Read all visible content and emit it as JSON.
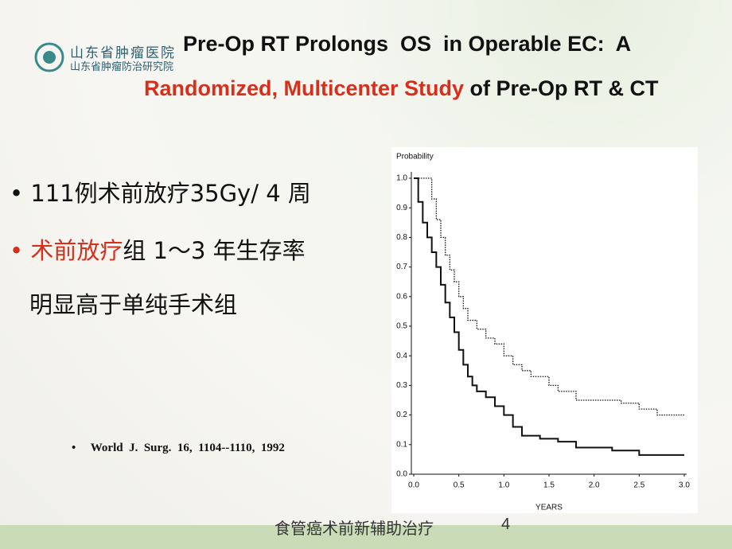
{
  "header": {
    "logo_line1": "山东省肿瘤医院",
    "logo_line2": "山东省肿瘤防治研究院",
    "title_line1": "Pre-Op RT Prolongs  OS  in Operable EC:  A",
    "title_line2_highlight": "Randomized, Multicenter Study",
    "title_line2_rest": " of Pre-Op RT & CT"
  },
  "bullets": [
    {
      "text": "111例术前放疗35Gy/ 4 周"
    },
    {
      "highlight": "术前放疗",
      "text": "组 1～3 年生存率",
      "continuation": "明显高于单纯手术组"
    }
  ],
  "reference": "World  J.  Surg.  16,  1104--1110,  1992",
  "footer": {
    "text": "食管癌术前新辅助治疗",
    "page": "4"
  },
  "chart_data": {
    "type": "line",
    "drawstyle": "steps-post",
    "ylabel": "Probability",
    "xlabel": "YEARS",
    "xlim": [
      0,
      3
    ],
    "ylim": [
      0,
      1
    ],
    "xticks": [
      {
        "value": 0,
        "label": "0.0"
      },
      0.5,
      {
        "value": 1,
        "label": "1.0"
      },
      1.5,
      {
        "value": 2,
        "label": "2.0"
      },
      2.5,
      {
        "value": 3,
        "label": "3.0"
      }
    ],
    "yticks": [
      {
        "value": 0,
        "label": "0.0"
      },
      0.1,
      0.2,
      0.3,
      0.4,
      0.5,
      0.6,
      0.7,
      0.8,
      0.9,
      {
        "value": 1,
        "label": "1.0"
      }
    ],
    "series": [
      {
        "color": "#111111",
        "linestyle": "dotted",
        "x": [
          0,
          0.15,
          0.2,
          0.25,
          0.3,
          0.35,
          0.4,
          0.45,
          0.5,
          0.55,
          0.6,
          0.7,
          0.8,
          0.9,
          1.0,
          1.1,
          1.2,
          1.3,
          1.5,
          1.6,
          1.8,
          2.3,
          2.5,
          2.7,
          3.0
        ],
        "values": [
          1.0,
          1.0,
          0.93,
          0.86,
          0.8,
          0.74,
          0.69,
          0.65,
          0.6,
          0.56,
          0.52,
          0.49,
          0.46,
          0.44,
          0.4,
          0.37,
          0.35,
          0.33,
          0.3,
          0.28,
          0.25,
          0.24,
          0.22,
          0.2,
          0.2
        ]
      },
      {
        "color": "#111111",
        "linestyle": "solid",
        "x": [
          0,
          0.05,
          0.1,
          0.15,
          0.2,
          0.25,
          0.3,
          0.35,
          0.4,
          0.45,
          0.5,
          0.55,
          0.6,
          0.65,
          0.7,
          0.8,
          0.9,
          1.0,
          1.1,
          1.2,
          1.4,
          1.6,
          1.8,
          2.2,
          2.5,
          3.0
        ],
        "values": [
          1.0,
          0.92,
          0.85,
          0.8,
          0.75,
          0.7,
          0.64,
          0.58,
          0.53,
          0.48,
          0.42,
          0.37,
          0.33,
          0.3,
          0.28,
          0.26,
          0.23,
          0.2,
          0.16,
          0.13,
          0.12,
          0.11,
          0.09,
          0.08,
          0.065,
          0.065
        ]
      }
    ]
  }
}
